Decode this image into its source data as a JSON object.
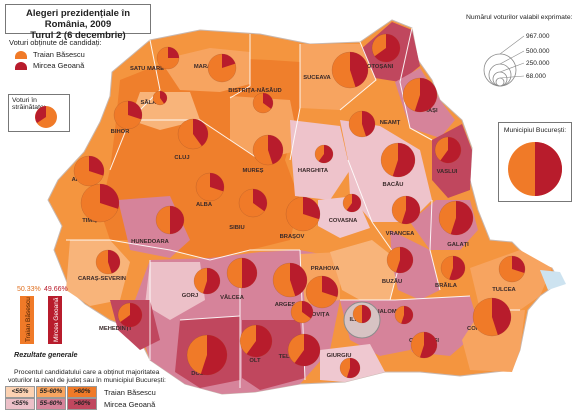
{
  "title": {
    "line1": "Alegeri prezidențiale în România, 2009",
    "line2": "Turul 2 (6 decembrie)"
  },
  "candidates_legend": {
    "heading": "Voturi obținute de candidați:",
    "items": [
      {
        "name": "Traian Băsescu",
        "color": "#f07a28"
      },
      {
        "name": "Mircea Geoană",
        "color": "#b81c2c"
      }
    ]
  },
  "abroad_box": {
    "label": "Voturi în străinătate:"
  },
  "bucharest_box": {
    "label": "Municipiul București:"
  },
  "size_legend": {
    "heading": "Numărul voturilor valabil exprimate:",
    "values": [
      "967.000",
      "500.000",
      "250.000",
      "68.000"
    ]
  },
  "general_results": {
    "label": "Rezultate generale",
    "basescu_pct": "50.33%",
    "geoana_pct": "49.66%",
    "basescu_label": "Traian Băsescu",
    "geoana_label": "Mircea Geoană",
    "basescu_value": 50.33,
    "geoana_value": 49.66
  },
  "shading_legend": {
    "text_line1": "Procentul candidatului care a obținut majoritatea",
    "text_line2": "voturilor la nivel de județ sau în municipiul București:",
    "basescu_row": {
      "candidate": "Traian Băsescu",
      "bins": [
        "<55%",
        "55-60%",
        ">60%"
      ],
      "colors": [
        "#fcd2b2",
        "#f8a560",
        "#f07a28"
      ]
    },
    "geoana_row": {
      "candidate": "Mircea Geoană",
      "bins": [
        "<55%",
        "55-60%",
        ">60%"
      ],
      "colors": [
        "#ecc0c8",
        "#d6839a",
        "#c0475e"
      ]
    }
  },
  "counties": [
    {
      "name": "SATU MARE"
    },
    {
      "name": "MARAMUREȘ"
    },
    {
      "name": "BOTOȘANI"
    },
    {
      "name": "SUCEAVA"
    },
    {
      "name": "SĂLAJ"
    },
    {
      "name": "BISTRIȚA-NĂSĂUD"
    },
    {
      "name": "IAȘI"
    },
    {
      "name": "BIHOR"
    },
    {
      "name": "NEAMȚ"
    },
    {
      "name": "CLUJ"
    },
    {
      "name": "VASLUI"
    },
    {
      "name": "MUREȘ"
    },
    {
      "name": "HARGHITA"
    },
    {
      "name": "BACĂU"
    },
    {
      "name": "ARAD"
    },
    {
      "name": "ALBA"
    },
    {
      "name": "COVASNA"
    },
    {
      "name": "SIBIU"
    },
    {
      "name": "VRANCEA"
    },
    {
      "name": "TIMIȘ"
    },
    {
      "name": "BRAȘOV"
    },
    {
      "name": "GALAȚI"
    },
    {
      "name": "HUNEDOARA"
    },
    {
      "name": "CARAȘ-SEVERIN"
    },
    {
      "name": "GORJ"
    },
    {
      "name": "VÂLCEA"
    },
    {
      "name": "ARGEȘ"
    },
    {
      "name": "PRAHOVA"
    },
    {
      "name": "BUZĂU"
    },
    {
      "name": "BRĂILA"
    },
    {
      "name": "TULCEA"
    },
    {
      "name": "MEHEDINȚI"
    },
    {
      "name": "DÂMBOVIȚA"
    },
    {
      "name": "ILFOV"
    },
    {
      "name": "IALOMIȚA"
    },
    {
      "name": "OLT"
    },
    {
      "name": "CONSTANȚA"
    },
    {
      "name": "CĂLĂRAȘI"
    },
    {
      "name": "GIURGIU"
    },
    {
      "name": "TELEORMAN"
    },
    {
      "name": "DOLJ"
    }
  ]
}
